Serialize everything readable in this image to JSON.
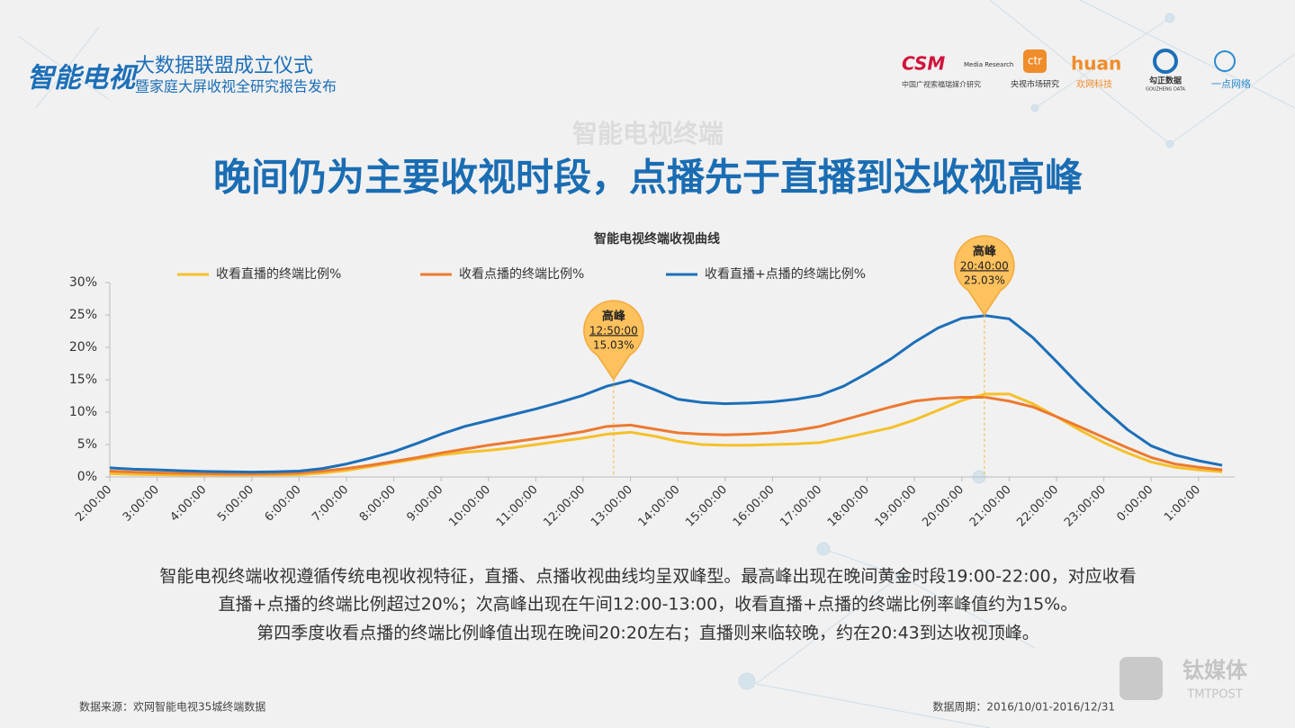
{
  "header": {
    "logo": "智能电视",
    "event_title": "大数据联盟成立仪式",
    "event_subtitle": "暨家庭大屏收视全研究报告发布",
    "partners": [
      {
        "name": "CSM",
        "sub": "Media Research",
        "caption": "中国广视索福瑞媒介研究"
      },
      {
        "name": "ctr",
        "caption": "央视市场研究"
      },
      {
        "name": "huan",
        "caption": "欢网科技"
      },
      {
        "name": "勾正数据",
        "caption": "GOUZHENG DATA"
      },
      {
        "caption": "一点网络"
      }
    ]
  },
  "section": "智能电视终端",
  "headline": "晚间仍为主要收视时段，点播先于直播到达收视高峰",
  "chart_data": {
    "type": "line",
    "title": "智能电视终端收视曲线",
    "categories": [
      "2:00:00",
      null,
      "3:00:00",
      null,
      "4:00:00",
      null,
      "5:00:00",
      null,
      "6:00:00",
      null,
      "7:00:00",
      null,
      "8:00:00",
      null,
      "9:00:00",
      null,
      "10:00:00",
      null,
      "11:00:00",
      null,
      "12:00:00",
      null,
      "13:00:00",
      null,
      "14:00:00",
      null,
      "15:00:00",
      null,
      "16:00:00",
      null,
      "17:00:00",
      null,
      "18:00:00",
      null,
      "19:00:00",
      null,
      "20:00:00",
      null,
      "21:00:00",
      null,
      "22:00:00",
      null,
      "23:00:00",
      null,
      "0:00:00",
      null,
      "1:00:00",
      null
    ],
    "series": [
      {
        "name": "收看直播的终端比例%",
        "color": "#f5c02a",
        "values": [
          0.5,
          0.4,
          0.35,
          0.3,
          0.3,
          0.3,
          0.3,
          0.3,
          0.35,
          0.6,
          1.0,
          1.6,
          2.2,
          2.8,
          3.4,
          3.8,
          4.1,
          4.5,
          5.0,
          5.5,
          6.0,
          6.6,
          6.9,
          6.3,
          5.5,
          5.0,
          4.9,
          4.9,
          5.0,
          5.1,
          5.3,
          6.0,
          6.8,
          7.6,
          8.8,
          10.3,
          11.8,
          12.8,
          12.8,
          11.3,
          9.3,
          7.2,
          5.3,
          3.7,
          2.3,
          1.5,
          1.1,
          0.8
        ]
      },
      {
        "name": "收看点播的终端比例%",
        "color": "#ec7a30",
        "values": [
          0.9,
          0.75,
          0.65,
          0.55,
          0.5,
          0.45,
          0.45,
          0.5,
          0.6,
          0.9,
          1.3,
          1.8,
          2.4,
          3.0,
          3.7,
          4.3,
          4.9,
          5.4,
          5.9,
          6.4,
          7.0,
          7.8,
          8.0,
          7.4,
          6.8,
          6.6,
          6.5,
          6.6,
          6.8,
          7.2,
          7.8,
          8.8,
          9.8,
          10.8,
          11.7,
          12.1,
          12.3,
          12.3,
          11.7,
          10.8,
          9.3,
          7.7,
          6.1,
          4.5,
          3.0,
          2.0,
          1.5,
          1.1
        ]
      },
      {
        "name": "收看直播+点播的终端比例%",
        "color": "#1c6fb8",
        "values": [
          1.4,
          1.2,
          1.1,
          0.95,
          0.85,
          0.8,
          0.75,
          0.8,
          0.9,
          1.3,
          2.0,
          2.9,
          3.9,
          5.2,
          6.6,
          7.8,
          8.7,
          9.6,
          10.5,
          11.5,
          12.6,
          14.0,
          14.9,
          13.5,
          12.0,
          11.5,
          11.3,
          11.4,
          11.6,
          12.0,
          12.6,
          14.0,
          16.0,
          18.2,
          20.8,
          23.0,
          24.5,
          24.9,
          24.4,
          21.5,
          17.8,
          14.0,
          10.5,
          7.3,
          4.8,
          3.4,
          2.5,
          1.8
        ]
      }
    ],
    "ylim": [
      0,
      30
    ],
    "yticks": [
      {
        "value": 0,
        "label": "0%"
      },
      {
        "value": 5,
        "label": "5%"
      },
      {
        "value": 10,
        "label": "10%"
      },
      {
        "value": 15,
        "label": "15%"
      },
      {
        "value": 20,
        "label": "20%"
      },
      {
        "value": 25,
        "label": "25%"
      },
      {
        "value": 30,
        "label": "30%"
      }
    ],
    "annotations": [
      {
        "title": "高峰",
        "time": "12:50:00",
        "value": 15.03,
        "value_label": "15.03%"
      },
      {
        "title": "高峰",
        "time": "20:40:00",
        "value": 25.03,
        "value_label": "25.03%"
      }
    ]
  },
  "description": [
    "智能电视终端收视遵循传统电视收视特征，直播、点播收视曲线均呈双峰型。最高峰出现在晚间黄金时段19:00-22:00，对应收看",
    "直播+点播的终端比例超过20%；次高峰出现在午间12:00-13:00，收看直播+点播的终端比例率峰值约为15%。",
    "第四季度收看点播的终端比例峰值出现在晚间20:20左右；直播则来临较晚，约在20:43到达收视顶峰。"
  ],
  "source": "数据来源：欢网智能电视35城终端数据",
  "period": "数据周期：2016/10/01-2016/12/31",
  "watermark": {
    "name": "钛媒体",
    "latin": "TMTPOST"
  }
}
